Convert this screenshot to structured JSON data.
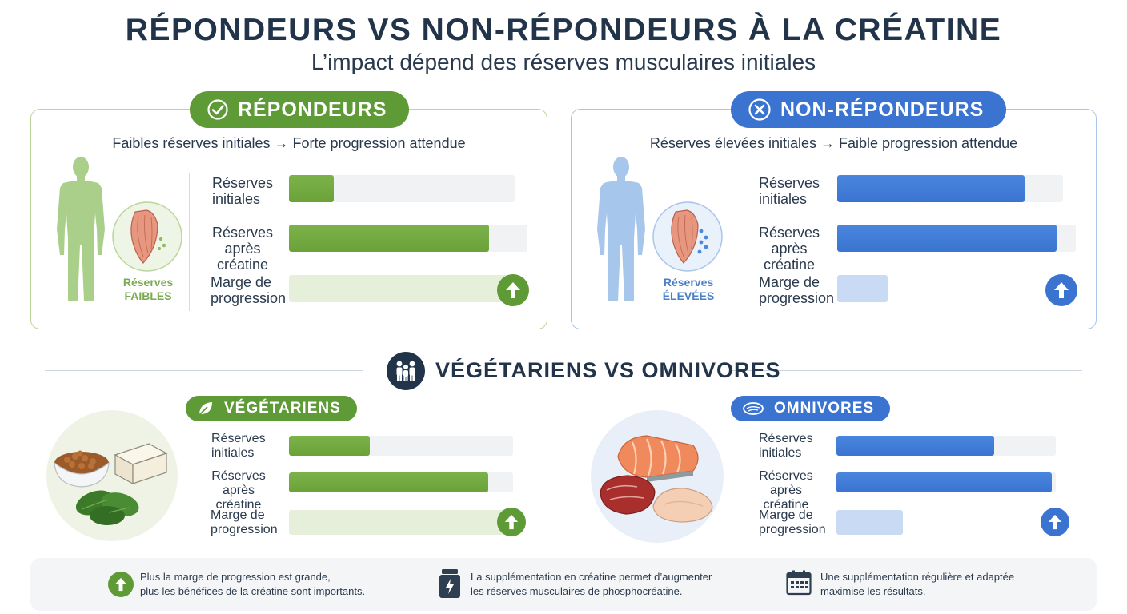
{
  "header": {
    "title": "RÉPONDEURS VS NON-RÉPONDEURS À LA CRÉATINE",
    "subtitle": "L’impact dépend des réserves musculaires initiales"
  },
  "responders": {
    "badge": "RÉPONDEURS",
    "subtitle": "Faibles réserves initiales → Forte progression attendue",
    "reserve_label_1": "Réserves",
    "reserve_label_2": "FAIBLES",
    "rows": [
      {
        "l1": "Réserves",
        "l2": "initiales",
        "value": 0.2
      },
      {
        "l1": "Réserves",
        "l2": "après créatine",
        "value": 0.84
      },
      {
        "l1": "Marge de",
        "l2": "progression",
        "value": 1.0
      }
    ],
    "accent": "#5e9a35"
  },
  "non_responders": {
    "badge": "NON-RÉPONDEURS",
    "subtitle": "Réserves élevées initiales → Faible progression attendue",
    "reserve_label_1": "Réserves",
    "reserve_label_2": "ÉLEVÉES",
    "rows": [
      {
        "l1": "Réserves",
        "l2": "initiales",
        "value": 0.83
      },
      {
        "l1": "Réserves",
        "l2": "après créatine",
        "value": 0.92
      },
      {
        "l1": "Marge de",
        "l2": "progression",
        "value": 0.21
      }
    ],
    "accent": "#3a74d0"
  },
  "section2": {
    "title": "VÉGÉTARIENS VS OMNIVORES"
  },
  "vegetarians": {
    "badge": "VÉGÉTARIENS",
    "rows": [
      {
        "l1": "Réserves",
        "l2": "initiales",
        "value": 0.36
      },
      {
        "l1": "Réserves",
        "l2": "après créatine",
        "value": 0.89
      },
      {
        "l1": "Marge de",
        "l2": "progression",
        "value": 1.0
      }
    ]
  },
  "omnivores": {
    "badge": "OMNIVORES",
    "rows": [
      {
        "l1": "Réserves",
        "l2": "initiales",
        "value": 0.72
      },
      {
        "l1": "Réserves",
        "l2": "après créatine",
        "value": 0.98
      },
      {
        "l1": "Marge de",
        "l2": "progression",
        "value": 0.3
      }
    ]
  },
  "footer": {
    "items": [
      {
        "l1": "Plus la marge de progression est grande,",
        "l2": "plus les bénéfices de la créatine sont importants."
      },
      {
        "l1": "La supplémentation en créatine permet d’augmenter",
        "l2": "les réserves musculaires de phosphocréatine."
      },
      {
        "l1": "Une supplémentation régulière et adaptée",
        "l2": "maximise les résultats."
      }
    ]
  },
  "icons": {
    "responders": "check-circle-icon",
    "non_responders": "x-circle-icon",
    "section2": "people-icon",
    "vegetarians": "leaf-icon",
    "omnivores": "steak-icon",
    "arrow": "arrow-up-icon",
    "footer": [
      "arrow-up-icon",
      "creatine-jar-icon",
      "calendar-icon"
    ]
  }
}
